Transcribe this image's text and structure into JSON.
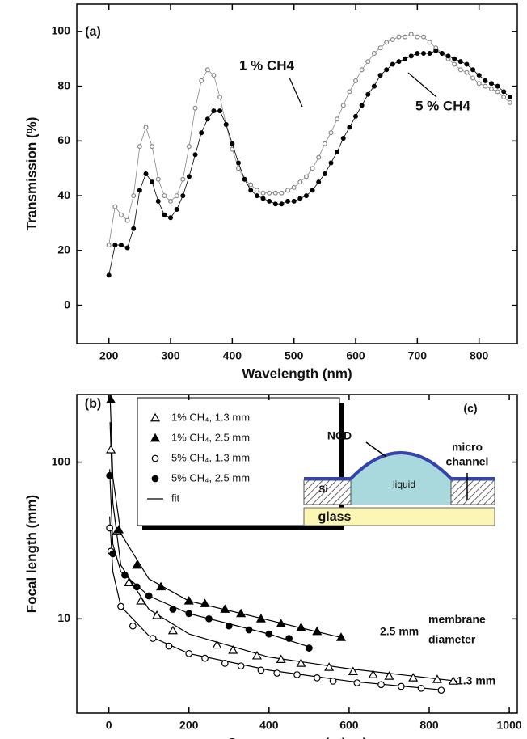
{
  "chart_data": [
    {
      "type": "line",
      "panel": "(a)",
      "x_label": "Wavelength (nm)",
      "y_label": "Transmission (%)",
      "xlim": [
        148,
        862
      ],
      "ylim": [
        -14,
        110
      ],
      "xticks": [
        200,
        300,
        400,
        500,
        600,
        700,
        800
      ],
      "yticks": [
        0,
        20,
        40,
        60,
        80,
        100
      ],
      "x": [
        200,
        210,
        220,
        230,
        240,
        250,
        260,
        270,
        280,
        290,
        300,
        310,
        320,
        330,
        340,
        350,
        360,
        370,
        380,
        390,
        400,
        410,
        420,
        430,
        440,
        450,
        460,
        470,
        480,
        490,
        500,
        510,
        520,
        530,
        540,
        550,
        560,
        570,
        580,
        590,
        600,
        610,
        620,
        630,
        640,
        650,
        660,
        670,
        680,
        690,
        700,
        710,
        720,
        730,
        740,
        750,
        760,
        770,
        780,
        790,
        800,
        810,
        820,
        830,
        840,
        850
      ],
      "series": [
        {
          "name": "1 % CH4",
          "color": "#888888",
          "marker": "circle-open",
          "values": [
            22,
            36,
            33,
            31,
            40,
            58,
            65,
            58,
            46,
            40,
            38,
            40,
            46,
            58,
            72,
            82,
            86,
            84,
            76,
            66,
            57,
            50,
            46,
            44,
            42,
            41,
            41,
            41,
            41,
            42,
            43,
            45,
            47,
            50,
            54,
            59,
            63,
            68,
            73,
            78,
            82,
            86,
            89,
            92,
            94,
            96,
            97,
            98,
            98,
            99,
            98,
            98,
            96,
            94,
            92,
            90,
            88,
            86,
            85,
            83,
            81,
            80,
            79,
            78,
            76,
            74
          ]
        },
        {
          "name": "5 % CH4",
          "color": "#000000",
          "marker": "circle",
          "values": [
            11,
            22,
            22,
            21,
            28,
            42,
            48,
            45,
            38,
            33,
            32,
            35,
            40,
            47,
            55,
            63,
            68,
            71,
            71,
            66,
            59,
            52,
            46,
            42,
            40,
            39,
            38,
            37,
            37,
            38,
            38,
            39,
            40,
            42,
            45,
            48,
            52,
            56,
            61,
            65,
            69,
            73,
            77,
            80,
            84,
            86,
            88,
            89,
            90,
            91,
            92,
            92,
            92,
            93,
            92,
            91,
            90,
            89,
            88,
            86,
            84,
            82,
            81,
            80,
            78,
            76
          ]
        }
      ]
    },
    {
      "type": "scatter",
      "panel": "(b)",
      "log_y": true,
      "x_label": "Over-pressure (mbar)",
      "y_label": "Focal length (mm)",
      "xlim": [
        -80,
        1020
      ],
      "ylim": [
        2.5,
        270
      ],
      "xticks": [
        0,
        200,
        400,
        600,
        800,
        1000
      ],
      "yticks": [
        10,
        100
      ],
      "series": [
        {
          "name": "1% CH₄,  1.3 mm",
          "color": "#000000",
          "marker": "triangle-open",
          "x": [
            5,
            20,
            50,
            80,
            120,
            160,
            270,
            310,
            370,
            430,
            480,
            550,
            610,
            660,
            700,
            760,
            820,
            860
          ],
          "values": [
            120,
            36,
            17,
            13,
            10.5,
            8.4,
            6.8,
            6.3,
            5.8,
            5.5,
            5.2,
            4.9,
            4.6,
            4.4,
            4.3,
            4.2,
            4.1,
            4.0
          ]
        },
        {
          "name": "1% CH₄,  2.5 mm",
          "color": "#000000",
          "marker": "triangle",
          "x": [
            5,
            25,
            70,
            130,
            200,
            240,
            290,
            330,
            380,
            430,
            480,
            520,
            580
          ],
          "values": [
            250,
            37,
            22,
            16,
            13,
            12.5,
            11.5,
            10.8,
            10,
            9.3,
            8.8,
            8.3,
            7.6
          ]
        },
        {
          "name": "5% CH₄,  1.3 mm",
          "color": "#000000",
          "marker": "circle-open",
          "x": [
            2,
            5,
            30,
            60,
            110,
            150,
            200,
            240,
            290,
            330,
            380,
            420,
            470,
            520,
            560,
            620,
            680,
            730,
            780,
            830
          ],
          "values": [
            38,
            27,
            12,
            9,
            7.5,
            6.7,
            6.0,
            5.6,
            5.2,
            5.0,
            4.7,
            4.5,
            4.4,
            4.2,
            4.0,
            3.9,
            3.8,
            3.7,
            3.6,
            3.5
          ]
        },
        {
          "name": "5% CH₄,  2.5 mm",
          "color": "#000000",
          "marker": "circle",
          "x": [
            2,
            10,
            40,
            70,
            100,
            160,
            200,
            250,
            300,
            350,
            400,
            450,
            500
          ],
          "values": [
            82,
            26,
            19,
            16,
            14,
            11.5,
            10.8,
            10,
            9,
            8.5,
            8,
            7.5,
            6.5
          ]
        }
      ],
      "fit": {
        "name": "fit",
        "color": "#000000",
        "curves": [
          {
            "x": [
              3,
              10,
              30,
              100,
              200,
              400,
              600,
              870
            ],
            "values": [
              180,
              55,
              22,
              11.5,
              8,
              5.7,
              4.8,
              4.0
            ]
          },
          {
            "x": [
              3,
              10,
              30,
              100,
              200,
              400,
              580
            ],
            "values": [
              270,
              80,
              35,
              18,
              13,
              9.8,
              7.6
            ]
          },
          {
            "x": [
              2,
              10,
              30,
              100,
              200,
              400,
              600,
              840
            ],
            "values": [
              45,
              20,
              12,
              7.8,
              6,
              4.7,
              4.0,
              3.5
            ]
          },
          {
            "x": [
              2,
              10,
              30,
              100,
              200,
              400,
              510
            ],
            "values": [
              90,
              30,
              20,
              14,
              10.8,
              8,
              6.5
            ]
          }
        ]
      },
      "annotations": [
        "2.5 mm",
        "1.3 mm",
        "membrane",
        "diameter"
      ],
      "inset": {
        "panel": "(c)",
        "labels": [
          "NCD",
          "micro",
          "channel",
          "Si",
          "liquid",
          "glass"
        ]
      }
    }
  ]
}
